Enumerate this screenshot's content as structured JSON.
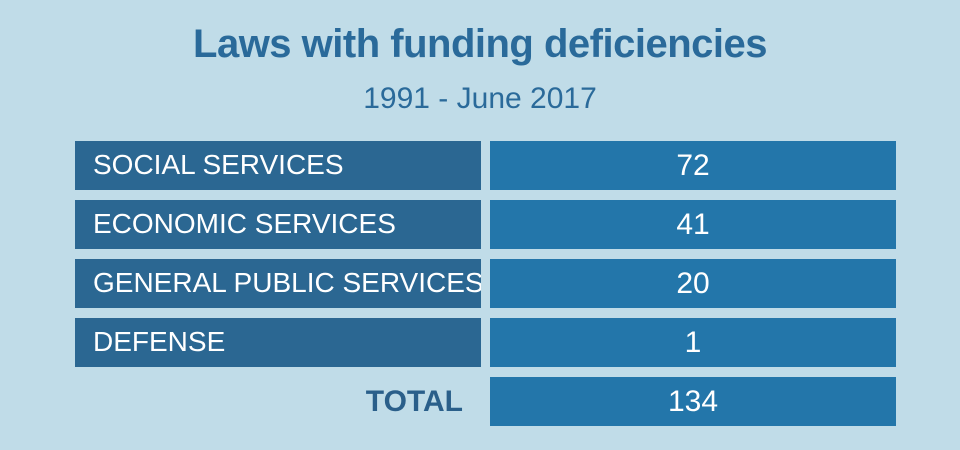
{
  "chart_data": {
    "type": "table",
    "title": "Laws with funding deficiencies",
    "subtitle": "1991 - June 2017",
    "categories": [
      "SOCIAL SERVICES",
      "ECONOMIC SERVICES",
      "GENERAL PUBLIC SERVICES",
      "DEFENSE"
    ],
    "values": [
      "72",
      "41",
      "20",
      "1"
    ],
    "total_label": "TOTAL",
    "total_value": "134"
  },
  "colors": {
    "background": "#c0dce8",
    "category_cell": "#2b6792",
    "value_cell": "#2376aa",
    "title": "#2a6a9a"
  }
}
